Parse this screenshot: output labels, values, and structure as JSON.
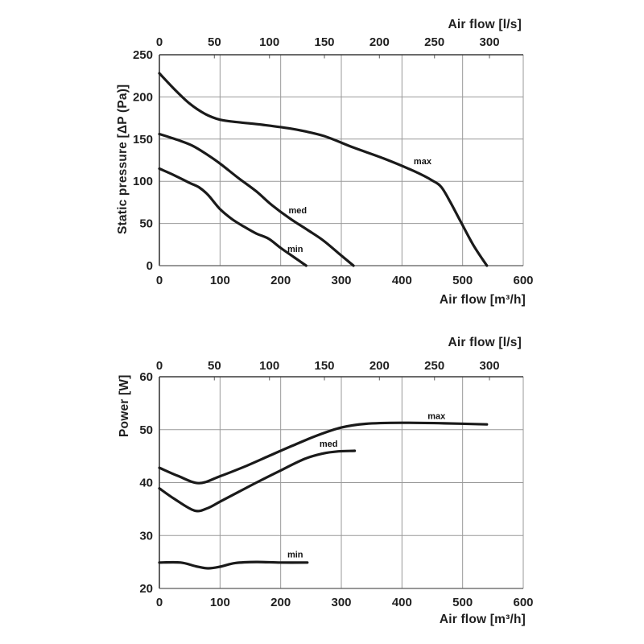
{
  "page": {
    "background": "#ffffff",
    "curve_color": "#1a1a1a",
    "grid_color": "#999999",
    "axis_color": "#3a3a3a"
  },
  "chart_data": [
    {
      "type": "line",
      "title": "",
      "x_top": {
        "label": "Air flow [l/s]",
        "min": 0,
        "max": 330.7,
        "ticks": [
          0,
          50,
          100,
          150,
          200,
          250,
          300
        ]
      },
      "x_bottom": {
        "label": "Air flow [m³/h]",
        "min": 0,
        "max": 600,
        "ticks": [
          0,
          100,
          200,
          300,
          400,
          500,
          600
        ]
      },
      "y": {
        "label": "Static pressure [ΔP (Pa)]",
        "min": 0,
        "max": 250,
        "ticks": [
          0,
          50,
          100,
          150,
          200,
          250
        ]
      },
      "grid": true,
      "series": [
        {
          "name": "max",
          "label_at": [
            434,
            124
          ],
          "points": [
            [
              0,
              228
            ],
            [
              25,
              209
            ],
            [
              50,
              192
            ],
            [
              75,
              180
            ],
            [
              100,
              173
            ],
            [
              130,
              170
            ],
            [
              170,
              167
            ],
            [
              220,
              162
            ],
            [
              270,
              154
            ],
            [
              320,
              140
            ],
            [
              370,
              127
            ],
            [
              420,
              112
            ],
            [
              450,
              101
            ],
            [
              465,
              93
            ],
            [
              480,
              75
            ],
            [
              497,
              52
            ],
            [
              518,
              24
            ],
            [
              540,
              0
            ]
          ]
        },
        {
          "name": "med",
          "label_at": [
            228,
            66
          ],
          "points": [
            [
              0,
              156
            ],
            [
              30,
              149
            ],
            [
              55,
              142
            ],
            [
              80,
              131
            ],
            [
              100,
              121
            ],
            [
              130,
              104
            ],
            [
              160,
              88
            ],
            [
              185,
              72
            ],
            [
              215,
              56
            ],
            [
              245,
              42
            ],
            [
              270,
              30
            ],
            [
              295,
              15
            ],
            [
              320,
              0
            ]
          ]
        },
        {
          "name": "min",
          "label_at": [
            224,
            20
          ],
          "points": [
            [
              0,
              115
            ],
            [
              25,
              107
            ],
            [
              50,
              98
            ],
            [
              65,
              93
            ],
            [
              80,
              84
            ],
            [
              100,
              67
            ],
            [
              120,
              55
            ],
            [
              140,
              46
            ],
            [
              160,
              38
            ],
            [
              180,
              32
            ],
            [
              200,
              21
            ],
            [
              222,
              10
            ],
            [
              242,
              0
            ]
          ]
        }
      ]
    },
    {
      "type": "line",
      "title": "",
      "x_top": {
        "label": "Air flow [l/s]",
        "min": 0,
        "max": 330.7,
        "ticks": [
          0,
          50,
          100,
          150,
          200,
          250,
          300
        ]
      },
      "x_bottom": {
        "label": "Air flow [m³/h]",
        "min": 0,
        "max": 600,
        "ticks": [
          0,
          100,
          200,
          300,
          400,
          500,
          600
        ]
      },
      "y": {
        "label": "Power [W]",
        "min": 20,
        "max": 60,
        "ticks": [
          20,
          30,
          40,
          50,
          60
        ]
      },
      "grid": true,
      "series": [
        {
          "name": "max",
          "label_at": [
            457,
            52.6
          ],
          "points": [
            [
              0,
              42.8
            ],
            [
              30,
              41.3
            ],
            [
              65,
              39.9
            ],
            [
              100,
              41.2
            ],
            [
              140,
              43
            ],
            [
              180,
              45
            ],
            [
              220,
              47
            ],
            [
              260,
              48.9
            ],
            [
              300,
              50.4
            ],
            [
              340,
              51.1
            ],
            [
              400,
              51.3
            ],
            [
              470,
              51.2
            ],
            [
              540,
              51
            ]
          ]
        },
        {
          "name": "med",
          "label_at": [
            279,
            47.4
          ],
          "points": [
            [
              0,
              38.9
            ],
            [
              25,
              36.9
            ],
            [
              58,
              34.7
            ],
            [
              80,
              35.2
            ],
            [
              100,
              36.4
            ],
            [
              130,
              38.2
            ],
            [
              160,
              40
            ],
            [
              200,
              42.3
            ],
            [
              240,
              44.5
            ],
            [
              270,
              45.5
            ],
            [
              295,
              45.9
            ],
            [
              322,
              46
            ]
          ]
        },
        {
          "name": "min",
          "label_at": [
            224,
            26.5
          ],
          "points": [
            [
              0,
              24.9
            ],
            [
              35,
              24.9
            ],
            [
              60,
              24.2
            ],
            [
              80,
              23.8
            ],
            [
              100,
              24.1
            ],
            [
              125,
              24.8
            ],
            [
              160,
              25
            ],
            [
              200,
              24.9
            ],
            [
              244,
              24.9
            ]
          ]
        }
      ]
    }
  ]
}
